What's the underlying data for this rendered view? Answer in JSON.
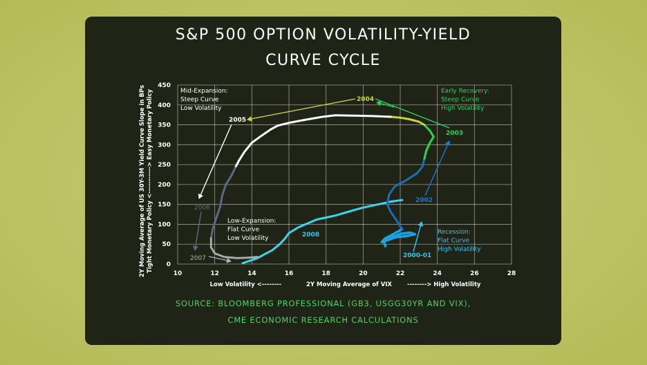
{
  "title_line1": "S&P 500 OPTION VOLATILITY-YIELD",
  "title_line2": "CURVE CYCLE",
  "source_line1": "SOURCE: BLOOMBERG PROFESSIONAL (GB3, USGG30YR AND VIX),",
  "source_line2": "CME ECONOMIC RESEARCH CALCULATIONS",
  "chart_data": {
    "type": "line",
    "title": "S&P 500 OPTION VOLATILITY-YIELD CURVE CYCLE",
    "xlabel_left": "Low Volatility <--------",
    "xlabel": "2Y Moving Average of VIX",
    "xlabel_right": "--------> High Volatility",
    "ylabel": "2Y Moving Average of US 30Y-3M Yield Curve Slope in BPs",
    "ylabel2": "Tight Monetary Policy <-----------> Easy Monetary Policy",
    "xlim": [
      10,
      28
    ],
    "ylim": [
      0,
      450
    ],
    "x_ticks": [
      "10",
      "12",
      "14",
      "16",
      "18",
      "20",
      "22",
      "24",
      "26",
      "28"
    ],
    "y_ticks": [
      "0",
      "50",
      "100",
      "150",
      "200",
      "250",
      "300",
      "350",
      "400",
      "450"
    ],
    "grid": true,
    "series": [
      {
        "color": "#36d7f0",
        "points": [
          [
            13.5,
            2
          ],
          [
            14.3,
            15
          ],
          [
            14.7,
            25
          ],
          [
            15.1,
            35
          ],
          [
            15.5,
            50
          ],
          [
            15.8,
            65
          ],
          [
            16.0,
            78
          ],
          [
            16.5,
            92
          ],
          [
            17.0,
            102
          ],
          [
            17.5,
            112
          ],
          [
            18.5,
            122
          ],
          [
            19.3,
            133
          ],
          [
            20.0,
            142
          ],
          [
            20.8,
            150
          ],
          [
            21.5,
            157
          ],
          [
            22.1,
            161
          ]
        ]
      },
      {
        "color": "#1aa1e0",
        "points": [
          [
            21.2,
            45
          ],
          [
            21.1,
            58
          ],
          [
            21.6,
            68
          ],
          [
            22.0,
            76
          ],
          [
            22.5,
            79
          ],
          [
            22.8,
            75
          ],
          [
            22.3,
            70
          ],
          [
            21.8,
            68
          ],
          [
            21.3,
            60
          ],
          [
            21.0,
            55
          ],
          [
            21.2,
            65
          ],
          [
            21.5,
            72
          ],
          [
            21.8,
            80
          ],
          [
            22.1,
            88
          ]
        ]
      },
      {
        "color": "#1a6eb8",
        "points": [
          [
            22.1,
            88
          ],
          [
            21.8,
            110
          ],
          [
            21.5,
            130
          ],
          [
            21.3,
            150
          ],
          [
            21.4,
            175
          ],
          [
            21.7,
            195
          ],
          [
            22.3,
            210
          ],
          [
            22.9,
            228
          ],
          [
            23.2,
            245
          ],
          [
            23.3,
            265
          ]
        ]
      },
      {
        "color": "#28d45a",
        "points": [
          [
            23.3,
            265
          ],
          [
            23.4,
            285
          ],
          [
            23.6,
            305
          ],
          [
            23.8,
            320
          ],
          [
            23.6,
            335
          ],
          [
            23.3,
            350
          ]
        ]
      },
      {
        "color": "#c9d63a",
        "points": [
          [
            23.3,
            350
          ],
          [
            23.0,
            358
          ],
          [
            22.5,
            364
          ],
          [
            22.0,
            368
          ],
          [
            21.5,
            370
          ]
        ]
      },
      {
        "color": "#ffffff",
        "points": [
          [
            21.5,
            370
          ],
          [
            20.5,
            372
          ],
          [
            19.5,
            373
          ],
          [
            18.5,
            374
          ],
          [
            17.8,
            370
          ],
          [
            16.8,
            362
          ],
          [
            16.0,
            355
          ],
          [
            15.4,
            348
          ],
          [
            15.0,
            338
          ],
          [
            14.5,
            322
          ],
          [
            14.0,
            305
          ],
          [
            13.6,
            282
          ],
          [
            13.3,
            260
          ],
          [
            13.1,
            242
          ]
        ]
      },
      {
        "color": "#5a6b80",
        "points": [
          [
            13.1,
            242
          ],
          [
            12.9,
            222
          ],
          [
            12.6,
            200
          ],
          [
            12.4,
            172
          ],
          [
            12.3,
            145
          ],
          [
            12.1,
            118
          ],
          [
            11.9,
            90
          ],
          [
            11.8,
            65
          ]
        ]
      },
      {
        "color": "#a8abab",
        "points": [
          [
            11.8,
            65
          ],
          [
            11.8,
            42
          ],
          [
            12.0,
            27
          ],
          [
            12.5,
            18
          ],
          [
            13.2,
            15
          ],
          [
            13.8,
            16
          ],
          [
            14.3,
            18
          ]
        ]
      }
    ],
    "annotations": {
      "y2004": "2004",
      "y2005": "2005",
      "y2003": "2003",
      "y2002": "2002",
      "y2006": "2006",
      "y2007": "2007",
      "y2008": "2008",
      "y2000": "2000-01",
      "mid_expansion": [
        "Mid-Expansion:",
        "Steep Curve",
        "Low Volatility"
      ],
      "early_recovery": [
        "Early Recovery:",
        "Steep Curve",
        "High Volatility"
      ],
      "low_expansion": [
        "Low-Expansion:",
        "Flat Curve",
        "Low Volatility"
      ],
      "recession": [
        "Recession:",
        "Flat Curve",
        "High Volatility"
      ]
    }
  }
}
